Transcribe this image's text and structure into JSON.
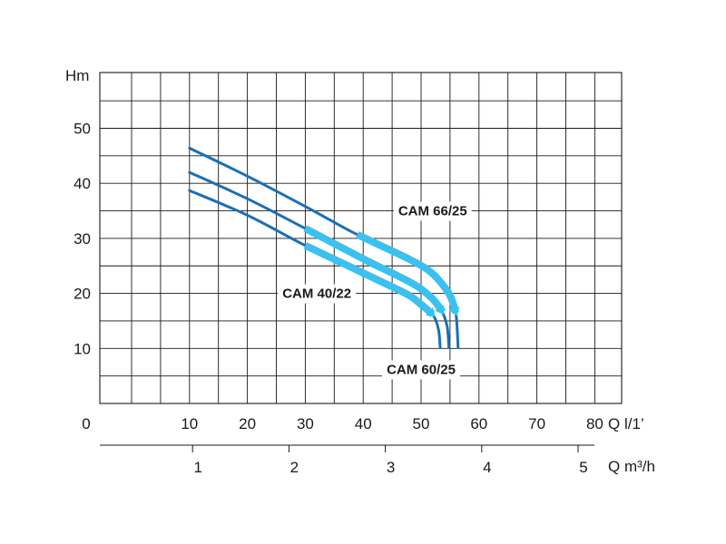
{
  "chart_data": {
    "type": "line",
    "title": "",
    "ylabel": "Hm",
    "xlabel": "Q l/1’",
    "xlabel_secondary": "Q m³/h",
    "x_range": [
      0,
      90
    ],
    "ylim": [
      0,
      60
    ],
    "x_ticks": [
      {
        "value": 0,
        "label": "0"
      },
      {
        "value": 10,
        "label": "10"
      },
      {
        "value": 20,
        "label": "20"
      },
      {
        "value": 30,
        "label": "30"
      },
      {
        "value": 40,
        "label": "40"
      },
      {
        "value": 50,
        "label": "50"
      },
      {
        "value": 60,
        "label": "60"
      },
      {
        "value": 70,
        "label": "70"
      },
      {
        "value": 80,
        "label": "80"
      }
    ],
    "secondary_ticks": [
      {
        "value": 1,
        "label": "1"
      },
      {
        "value": 2,
        "label": "2"
      },
      {
        "value": 3,
        "label": "3"
      },
      {
        "value": 4,
        "label": "4"
      },
      {
        "value": 5,
        "label": "5"
      }
    ],
    "y_ticks": [
      {
        "value": 10,
        "label": "10"
      },
      {
        "value": 20,
        "label": "20"
      },
      {
        "value": 30,
        "label": "30"
      },
      {
        "value": 40,
        "label": "40"
      },
      {
        "value": 50,
        "label": "50"
      }
    ],
    "grid": true,
    "colors": {
      "curve": "#1c6fb3",
      "optimal_range": "#3cc0ee",
      "grid": "#1a1a1a"
    },
    "series": [
      {
        "name": "CAM 40/22",
        "label_at": [
          32,
          20
        ],
        "points": [
          [
            10,
            38.7
          ],
          [
            20,
            34.2
          ],
          [
            30,
            28.7
          ],
          [
            40,
            23.7
          ],
          [
            45,
            21.2
          ],
          [
            48,
            19.6
          ],
          [
            50,
            18.0
          ],
          [
            52,
            16.2
          ],
          [
            53,
            13.5
          ],
          [
            53.3,
            10.2
          ]
        ],
        "optimal_range": [
          30,
          52
        ]
      },
      {
        "name": "CAM 60/25",
        "label_at": [
          50,
          6.2
        ],
        "points": [
          [
            10,
            42.0
          ],
          [
            20,
            37.2
          ],
          [
            30,
            31.8
          ],
          [
            40,
            26.3
          ],
          [
            45,
            23.7
          ],
          [
            48,
            22.1
          ],
          [
            50,
            20.8
          ],
          [
            52,
            19.0
          ],
          [
            53.5,
            17.0
          ],
          [
            54.5,
            14.0
          ],
          [
            54.8,
            10.2
          ]
        ],
        "optimal_range": [
          30,
          53.6
        ]
      },
      {
        "name": "CAM 66/25",
        "label_at": [
          52,
          35
        ],
        "points": [
          [
            10,
            46.4
          ],
          [
            20,
            41.3
          ],
          [
            30,
            35.8
          ],
          [
            38,
            31.2
          ],
          [
            43,
            28.7
          ],
          [
            48,
            26.2
          ],
          [
            51,
            24.4
          ],
          [
            53,
            22.5
          ],
          [
            55,
            19.6
          ],
          [
            56,
            16.5
          ],
          [
            56.4,
            10.2
          ]
        ],
        "optimal_range": [
          39,
          56
        ]
      }
    ]
  }
}
